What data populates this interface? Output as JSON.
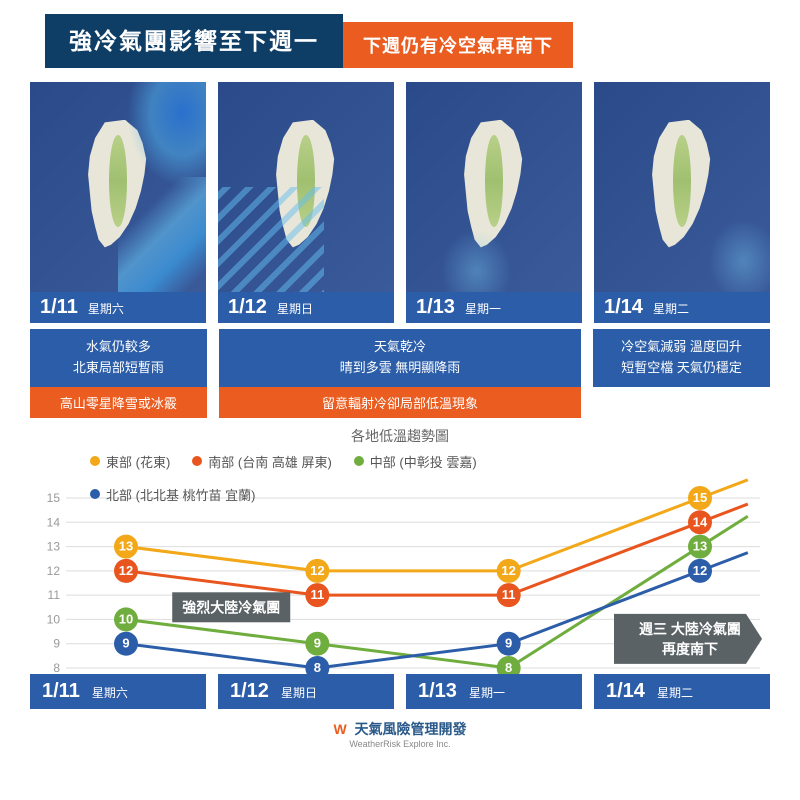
{
  "header": {
    "title_main": "強冷氣團影響至下週一",
    "title_sub": "下週仍有冷空氣再南下"
  },
  "colors": {
    "blue_dark": "#0e3d66",
    "blue_mid": "#2b5da8",
    "orange": "#ea5c1f",
    "bg": "#ffffff"
  },
  "maps": [
    {
      "date": "1/11",
      "day": "星期六",
      "rain_pattern": "heavy-ne"
    },
    {
      "date": "1/12",
      "day": "星期日",
      "rain_pattern": "sw-streaks"
    },
    {
      "date": "1/13",
      "day": "星期一",
      "rain_pattern": "light-s"
    },
    {
      "date": "1/14",
      "day": "星期二",
      "rain_pattern": "light-e"
    }
  ],
  "descriptions": {
    "group1": {
      "blue": "水氣仍較多\n北東局部短暫雨",
      "orange": "高山零星降雪或冰霰"
    },
    "group2": {
      "blue": "天氣乾冷\n晴到多雲 無明顯降雨",
      "orange": "留意輻射冷卻局部低溫現象"
    },
    "group3": {
      "blue": "冷空氣減弱 溫度回升\n短暫空檔 天氣仍穩定"
    }
  },
  "chart": {
    "title": "各地低溫趨勢圖",
    "type": "line",
    "ylim": [
      8,
      15
    ],
    "ytick_step": 1,
    "y_fontsize": 12,
    "grid_color": "#dddddd",
    "x_categories": [
      "1/11",
      "1/12",
      "1/13",
      "1/14"
    ],
    "legend_position": "top-left",
    "series": [
      {
        "name": "east",
        "label": "東部 (花東)",
        "color": "#f2a818",
        "values": [
          13,
          12,
          12,
          15
        ]
      },
      {
        "name": "south",
        "label": "南部 (台南 高雄 屏東)",
        "color": "#e8551e",
        "values": [
          12,
          11,
          11,
          14
        ]
      },
      {
        "name": "central",
        "label": "中部 (中彰投 雲嘉)",
        "color": "#6fae3e",
        "values": [
          10,
          9,
          8,
          13
        ]
      },
      {
        "name": "north",
        "label": "北部 (北北基 桃竹苗 宜蘭)",
        "color": "#2b5da8",
        "values": [
          9,
          8,
          9,
          12
        ]
      }
    ],
    "line_width": 3,
    "point_radius": 12,
    "point_label_fontsize": 13,
    "annotations": [
      {
        "text": "強烈大陸冷氣團",
        "x_index": 0.55,
        "y_value": 10.5,
        "bg": "#5a6265",
        "shape": "rect"
      },
      {
        "text": "週三 大陸冷氣團\n再度南下",
        "x_index": 3.0,
        "y_value": 9.2,
        "bg": "#5a6265",
        "shape": "arrow-right"
      }
    ]
  },
  "bottom_dates": [
    {
      "date": "1/11",
      "day": "星期六"
    },
    {
      "date": "1/12",
      "day": "星期日"
    },
    {
      "date": "1/13",
      "day": "星期一"
    },
    {
      "date": "1/14",
      "day": "星期二"
    }
  ],
  "footer": {
    "brand": "天氣風險管理開發",
    "sub": "WeatherRisk Explore Inc."
  }
}
